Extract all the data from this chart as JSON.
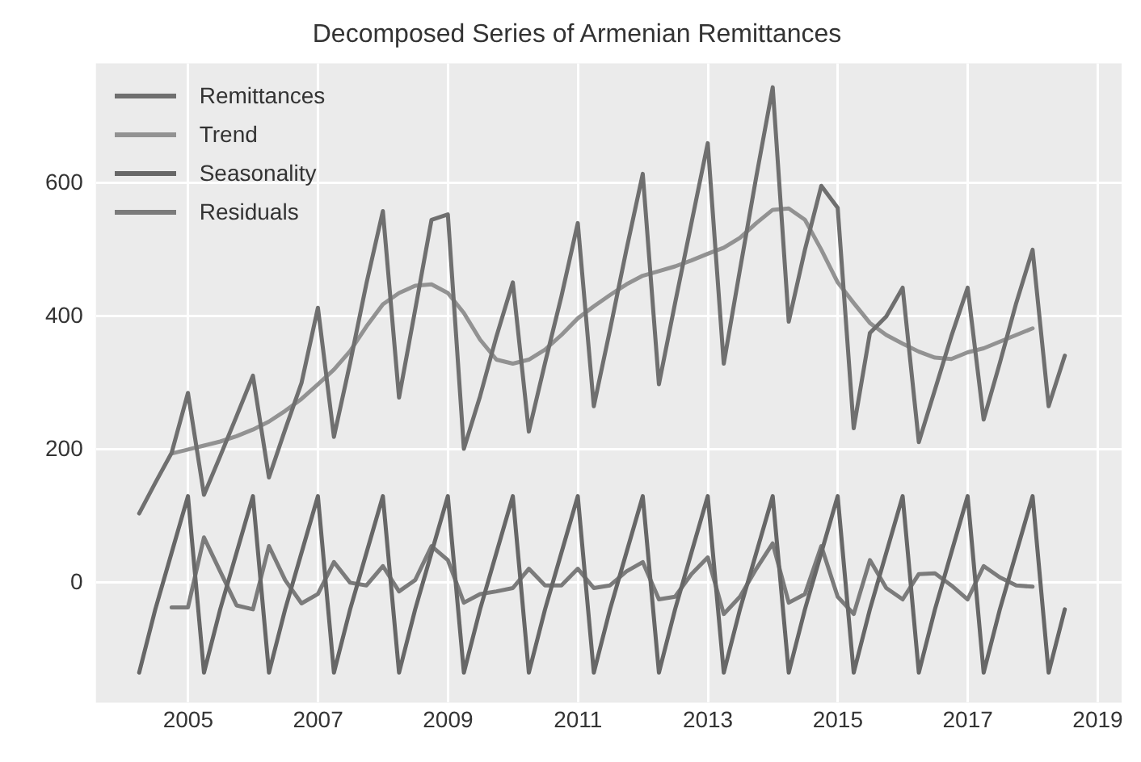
{
  "chart_data": {
    "type": "line",
    "title": "Decomposed Series of Armenian Remittances",
    "xlim": [
      "2003-08-01",
      "2019-05-15"
    ],
    "xticks": [
      "2005",
      "2007",
      "2009",
      "2011",
      "2013",
      "2015",
      "2017",
      "2019"
    ],
    "ylim": [
      -180,
      780
    ],
    "yticks": [
      0,
      200,
      400,
      600
    ],
    "grid": true,
    "legend": "top left",
    "marker": "none",
    "line_style": "solid",
    "series": [
      {
        "name": "Remittances",
        "color": "#6f6f6f",
        "x": [
          "2004-03-31",
          "2004-06-30",
          "2004-09-30",
          "2004-12-31",
          "2005-03-31",
          "2005-06-30",
          "2005-09-30",
          "2005-12-31",
          "2006-03-31",
          "2006-06-30",
          "2006-09-30",
          "2006-12-31",
          "2007-03-31",
          "2007-06-30",
          "2007-09-30",
          "2007-12-31",
          "2008-03-31",
          "2008-06-30",
          "2008-09-30",
          "2008-12-31",
          "2009-03-31",
          "2009-06-30",
          "2009-09-30",
          "2009-12-31",
          "2010-03-31",
          "2010-06-30",
          "2010-09-30",
          "2010-12-31",
          "2011-03-31",
          "2011-06-30",
          "2011-09-30",
          "2011-12-31",
          "2012-03-31",
          "2012-06-30",
          "2012-09-30",
          "2012-12-31",
          "2013-03-31",
          "2013-06-30",
          "2013-09-30",
          "2013-12-31",
          "2014-03-31",
          "2014-06-30",
          "2014-09-30",
          "2014-12-31",
          "2015-03-31",
          "2015-06-30",
          "2015-09-30",
          "2015-12-31",
          "2016-03-31",
          "2016-06-30",
          "2016-09-30",
          "2016-12-31",
          "2017-03-31",
          "2017-06-30",
          "2017-09-30",
          "2017-12-31",
          "2018-03-31",
          "2018-06-30"
        ],
        "values": [
          104,
          150,
          195,
          285,
          132,
          190,
          250,
          311,
          158,
          230,
          300,
          413,
          219,
          330,
          450,
          558,
          278,
          410,
          545,
          553,
          201,
          280,
          370,
          451,
          227,
          330,
          430,
          540,
          265,
          380,
          500,
          614,
          298,
          420,
          540,
          660,
          329,
          470,
          610,
          744,
          392,
          500,
          596,
          563,
          232,
          375,
          400,
          443,
          211,
          290,
          370,
          443,
          245,
          330,
          420,
          500,
          265,
          341
        ]
      },
      {
        "name": "Trend",
        "color": "#929292",
        "x": [
          "2004-09-30",
          "2004-12-31",
          "2005-03-31",
          "2005-06-30",
          "2005-09-30",
          "2005-12-31",
          "2006-03-31",
          "2006-06-30",
          "2006-09-30",
          "2006-12-31",
          "2007-03-31",
          "2007-06-30",
          "2007-09-30",
          "2007-12-31",
          "2008-03-31",
          "2008-06-30",
          "2008-09-30",
          "2008-12-31",
          "2009-03-31",
          "2009-06-30",
          "2009-09-30",
          "2009-12-31",
          "2010-03-31",
          "2010-06-30",
          "2010-09-30",
          "2010-12-31",
          "2011-03-31",
          "2011-06-30",
          "2011-09-30",
          "2011-12-31",
          "2012-03-31",
          "2012-06-30",
          "2012-09-30",
          "2012-12-31",
          "2013-03-31",
          "2013-06-30",
          "2013-09-30",
          "2013-12-31",
          "2014-03-31",
          "2014-06-30",
          "2014-09-30",
          "2014-12-31",
          "2015-03-31",
          "2015-06-30",
          "2015-09-30",
          "2015-12-31",
          "2016-03-31",
          "2016-06-30",
          "2016-09-30",
          "2016-12-31",
          "2017-03-31",
          "2017-06-30",
          "2017-09-30",
          "2017-12-31"
        ],
        "values": [
          194,
          200,
          206,
          212,
          220,
          230,
          242,
          258,
          276,
          298,
          320,
          348,
          385,
          418,
          435,
          446,
          448,
          435,
          405,
          365,
          335,
          329,
          335,
          350,
          372,
          397,
          415,
          432,
          448,
          461,
          468,
          475,
          484,
          494,
          503,
          518,
          540,
          560,
          562,
          545,
          500,
          451,
          420,
          390,
          372,
          359,
          347,
          338,
          336,
          346,
          352,
          362,
          372,
          382
        ]
      },
      {
        "name": "Seasonality",
        "color": "#676767",
        "x": [
          "2004-03-31",
          "2004-06-30",
          "2004-09-30",
          "2004-12-31",
          "2005-03-31",
          "2005-06-30",
          "2005-09-30",
          "2005-12-31",
          "2006-03-31",
          "2006-06-30",
          "2006-09-30",
          "2006-12-31",
          "2007-03-31",
          "2007-06-30",
          "2007-09-30",
          "2007-12-31",
          "2008-03-31",
          "2008-06-30",
          "2008-09-30",
          "2008-12-31",
          "2009-03-31",
          "2009-06-30",
          "2009-09-30",
          "2009-12-31",
          "2010-03-31",
          "2010-06-30",
          "2010-09-30",
          "2010-12-31",
          "2011-03-31",
          "2011-06-30",
          "2011-09-30",
          "2011-12-31",
          "2012-03-31",
          "2012-06-30",
          "2012-09-30",
          "2012-12-31",
          "2013-03-31",
          "2013-06-30",
          "2013-09-30",
          "2013-12-31",
          "2014-03-31",
          "2014-06-30",
          "2014-09-30",
          "2014-12-31",
          "2015-03-31",
          "2015-06-30",
          "2015-09-30",
          "2015-12-31",
          "2016-03-31",
          "2016-06-30",
          "2016-09-30",
          "2016-12-31",
          "2017-03-31",
          "2017-06-30",
          "2017-09-30",
          "2017-12-31",
          "2018-03-31",
          "2018-06-30"
        ],
        "values": [
          -135,
          -40,
          45,
          130,
          -135,
          -40,
          45,
          130,
          -135,
          -40,
          45,
          130,
          -135,
          -40,
          45,
          130,
          -135,
          -40,
          45,
          130,
          -135,
          -40,
          45,
          130,
          -135,
          -40,
          45,
          130,
          -135,
          -40,
          45,
          130,
          -135,
          -40,
          45,
          130,
          -135,
          -40,
          45,
          130,
          -135,
          -40,
          45,
          130,
          -135,
          -40,
          45,
          130,
          -135,
          -40,
          45,
          130,
          -135,
          -40,
          45,
          130,
          -135,
          -40
        ]
      },
      {
        "name": "Residuals",
        "color": "#7b7b7b",
        "x": [
          "2004-09-30",
          "2004-12-31",
          "2005-03-31",
          "2005-06-30",
          "2005-09-30",
          "2005-12-31",
          "2006-03-31",
          "2006-06-30",
          "2006-09-30",
          "2006-12-31",
          "2007-03-31",
          "2007-06-30",
          "2007-09-30",
          "2007-12-31",
          "2008-03-31",
          "2008-06-30",
          "2008-09-30",
          "2008-12-31",
          "2009-03-31",
          "2009-06-30",
          "2009-09-30",
          "2009-12-31",
          "2010-03-31",
          "2010-06-30",
          "2010-09-30",
          "2010-12-31",
          "2011-03-31",
          "2011-06-30",
          "2011-09-30",
          "2011-12-31",
          "2012-03-31",
          "2012-06-30",
          "2012-09-30",
          "2012-12-31",
          "2013-03-31",
          "2013-06-30",
          "2013-09-30",
          "2013-12-31",
          "2014-03-31",
          "2014-06-30",
          "2014-09-30",
          "2014-12-31",
          "2015-03-31",
          "2015-06-30",
          "2015-09-30",
          "2015-12-31",
          "2016-03-31",
          "2016-06-30",
          "2016-09-30",
          "2016-12-31",
          "2017-03-31",
          "2017-06-30",
          "2017-09-30",
          "2017-12-31"
        ],
        "values": [
          -37,
          -37,
          68,
          17,
          -34,
          -40,
          55,
          4,
          -31,
          -17,
          31,
          0,
          -4,
          25,
          -13,
          4,
          55,
          34,
          -30,
          -17,
          -13,
          -8,
          21,
          -4,
          -4,
          21,
          -8,
          -4,
          17,
          31,
          -25,
          -21,
          13,
          38,
          -47,
          -21,
          21,
          59,
          -30,
          -17,
          55,
          -21,
          -47,
          34,
          -8,
          -25,
          13,
          14,
          -4,
          -25,
          25,
          8,
          -4,
          -6
        ]
      }
    ]
  }
}
